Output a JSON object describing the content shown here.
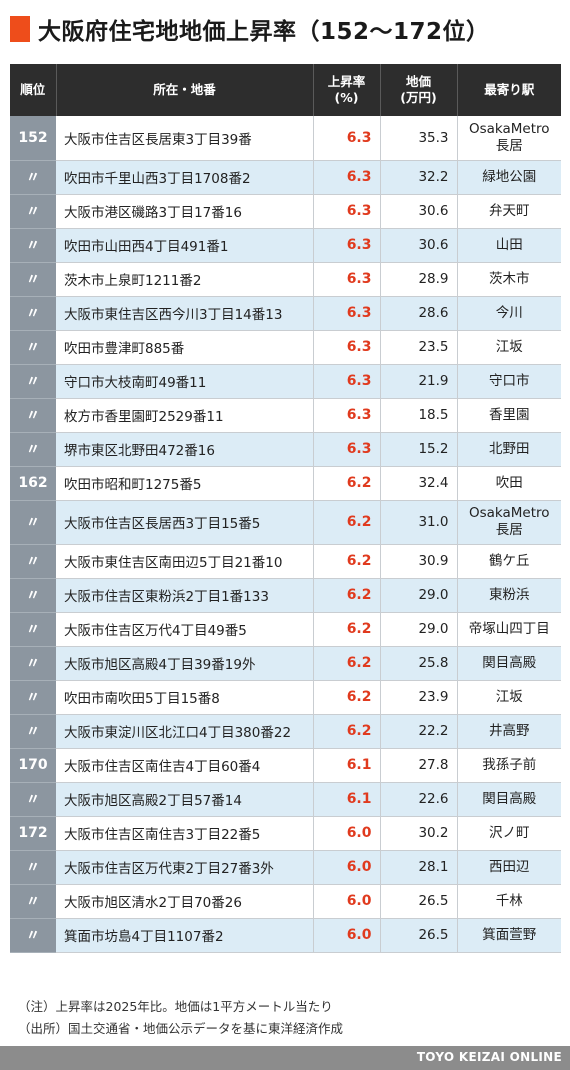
{
  "title": "大阪府住宅地地価上昇率（152〜172位）",
  "colors": {
    "accent": "#ee4d1b",
    "rate_red": "#e03a1e",
    "header_bg": "#2d2d2d",
    "rank_bg": "#8c96a0",
    "row_blue": "#dcecf6"
  },
  "table": {
    "headers": {
      "rank": "順位",
      "location": "所在・地番",
      "rate_line1": "上昇率",
      "rate_line2": "(%)",
      "price_line1": "地価",
      "price_line2": "(万円)",
      "station": "最寄り駅"
    },
    "rows": [
      {
        "rank": "152",
        "location": "大阪市住吉区長居東3丁目39番",
        "rate": "6.3",
        "price": "35.3",
        "station": [
          "OsakaMetro",
          "長居"
        ]
      },
      {
        "rank": "〃",
        "location": "吹田市千里山西3丁目1708番2",
        "rate": "6.3",
        "price": "32.2",
        "station": [
          "緑地公園"
        ]
      },
      {
        "rank": "〃",
        "location": "大阪市港区磯路3丁目17番16",
        "rate": "6.3",
        "price": "30.6",
        "station": [
          "弁天町"
        ]
      },
      {
        "rank": "〃",
        "location": "吹田市山田西4丁目491番1",
        "rate": "6.3",
        "price": "30.6",
        "station": [
          "山田"
        ]
      },
      {
        "rank": "〃",
        "location": "茨木市上泉町1211番2",
        "rate": "6.3",
        "price": "28.9",
        "station": [
          "茨木市"
        ]
      },
      {
        "rank": "〃",
        "location": "大阪市東住吉区西今川3丁目14番13",
        "rate": "6.3",
        "price": "28.6",
        "station": [
          "今川"
        ]
      },
      {
        "rank": "〃",
        "location": "吹田市豊津町885番",
        "rate": "6.3",
        "price": "23.5",
        "station": [
          "江坂"
        ]
      },
      {
        "rank": "〃",
        "location": "守口市大枝南町49番11",
        "rate": "6.3",
        "price": "21.9",
        "station": [
          "守口市"
        ]
      },
      {
        "rank": "〃",
        "location": "枚方市香里園町2529番11",
        "rate": "6.3",
        "price": "18.5",
        "station": [
          "香里園"
        ]
      },
      {
        "rank": "〃",
        "location": "堺市東区北野田472番16",
        "rate": "6.3",
        "price": "15.2",
        "station": [
          "北野田"
        ]
      },
      {
        "rank": "162",
        "location": "吹田市昭和町1275番5",
        "rate": "6.2",
        "price": "32.4",
        "station": [
          "吹田"
        ]
      },
      {
        "rank": "〃",
        "location": "大阪市住吉区長居西3丁目15番5",
        "rate": "6.2",
        "price": "31.0",
        "station": [
          "OsakaMetro",
          "長居"
        ]
      },
      {
        "rank": "〃",
        "location": "大阪市東住吉区南田辺5丁目21番10",
        "rate": "6.2",
        "price": "30.9",
        "station": [
          "鶴ケ丘"
        ]
      },
      {
        "rank": "〃",
        "location": "大阪市住吉区東粉浜2丁目1番133",
        "rate": "6.2",
        "price": "29.0",
        "station": [
          "東粉浜"
        ]
      },
      {
        "rank": "〃",
        "location": "大阪市住吉区万代4丁目49番5",
        "rate": "6.2",
        "price": "29.0",
        "station": [
          "帝塚山四丁目"
        ]
      },
      {
        "rank": "〃",
        "location": "大阪市旭区高殿4丁目39番19外",
        "rate": "6.2",
        "price": "25.8",
        "station": [
          "関目高殿"
        ]
      },
      {
        "rank": "〃",
        "location": "吹田市南吹田5丁目15番8",
        "rate": "6.2",
        "price": "23.9",
        "station": [
          "江坂"
        ]
      },
      {
        "rank": "〃",
        "location": "大阪市東淀川区北江口4丁目380番22",
        "rate": "6.2",
        "price": "22.2",
        "station": [
          "井高野"
        ]
      },
      {
        "rank": "170",
        "location": "大阪市住吉区南住吉4丁目60番4",
        "rate": "6.1",
        "price": "27.8",
        "station": [
          "我孫子前"
        ]
      },
      {
        "rank": "〃",
        "location": "大阪市旭区高殿2丁目57番14",
        "rate": "6.1",
        "price": "22.6",
        "station": [
          "関目高殿"
        ]
      },
      {
        "rank": "172",
        "location": "大阪市住吉区南住吉3丁目22番5",
        "rate": "6.0",
        "price": "30.2",
        "station": [
          "沢ノ町"
        ]
      },
      {
        "rank": "〃",
        "location": "大阪市住吉区万代東2丁目27番3外",
        "rate": "6.0",
        "price": "28.1",
        "station": [
          "西田辺"
        ]
      },
      {
        "rank": "〃",
        "location": "大阪市旭区清水2丁目70番26",
        "rate": "6.0",
        "price": "26.5",
        "station": [
          "千林"
        ]
      },
      {
        "rank": "〃",
        "location": "箕面市坊島4丁目1107番2",
        "rate": "6.0",
        "price": "26.5",
        "station": [
          "箕面萱野"
        ]
      }
    ]
  },
  "notes": {
    "note": "（注）上昇率は2025年比。地価は1平方メートル当たり",
    "source": "（出所）国土交通省・地価公示データを基に東洋経済作成"
  },
  "footer": "TOYO KEIZAI ONLINE"
}
